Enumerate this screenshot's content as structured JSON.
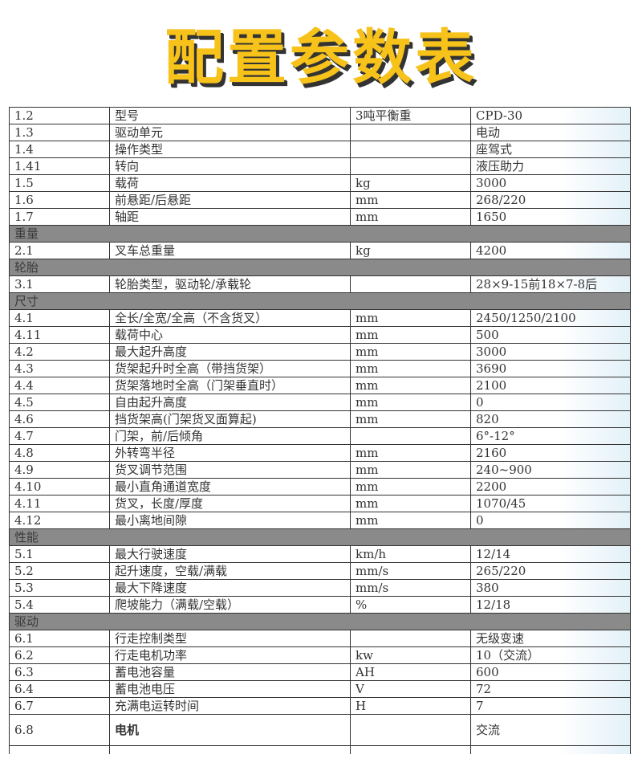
{
  "title": "配置参数表",
  "rows": [
    {
      "type": "row",
      "no": "1.2",
      "name": "型号",
      "unit": "3吨平衡重",
      "value": "CPD-30"
    },
    {
      "type": "row",
      "no": "1.3",
      "name": "驱动单元",
      "unit": "",
      "value": "电动"
    },
    {
      "type": "row",
      "no": "1.4",
      "name": "操作类型",
      "unit": "",
      "value": "座驾式"
    },
    {
      "type": "row",
      "no": "1.41",
      "name": "转向",
      "unit": "",
      "value": "液压助力"
    },
    {
      "type": "row",
      "no": "1.5",
      "name": "载荷",
      "unit": "kg",
      "value": "3000"
    },
    {
      "type": "row",
      "no": "1.6",
      "name": "前悬距/后悬距",
      "unit": "mm",
      "value": "268/220"
    },
    {
      "type": "row",
      "no": "1.7",
      "name": "轴距",
      "unit": "mm",
      "value": "1650"
    },
    {
      "type": "section",
      "name": "重量"
    },
    {
      "type": "row",
      "no": "2.1",
      "name": "叉车总重量",
      "unit": "kg",
      "value": "4200"
    },
    {
      "type": "section",
      "name": "轮胎"
    },
    {
      "type": "row",
      "no": "3.1",
      "name": "轮胎类型，驱动轮/承载轮",
      "unit": "",
      "value": "28×9-15前18×7-8后"
    },
    {
      "type": "section",
      "name": "尺寸"
    },
    {
      "type": "row",
      "no": "4.1",
      "name": "全长/全宽/全高（不含货叉）",
      "unit": "mm",
      "value": "2450/1250/2100"
    },
    {
      "type": "row",
      "no": "4.11",
      "name": "载荷中心",
      "unit": "mm",
      "value": "500"
    },
    {
      "type": "row",
      "no": "4.2",
      "name": "最大起升高度",
      "unit": "mm",
      "value": "3000"
    },
    {
      "type": "row",
      "no": "4.3",
      "name": "货架起升时全高（带挡货架）",
      "unit": "mm",
      "value": "3690"
    },
    {
      "type": "row",
      "no": "4.4",
      "name": "货架落地时全高（门架垂直时）",
      "unit": "mm",
      "value": "2100"
    },
    {
      "type": "row",
      "no": "4.5",
      "name": "自由起升高度",
      "unit": "mm",
      "value": "0"
    },
    {
      "type": "row",
      "no": "4.6",
      "name": "挡货架高(门架货叉面算起)",
      "unit": "mm",
      "value": "820"
    },
    {
      "type": "row",
      "no": "4.7",
      "name": "门架，前/后倾角",
      "unit": "",
      "value": "6°-12°"
    },
    {
      "type": "row",
      "no": "4.8",
      "name": "外转弯半径",
      "unit": "mm",
      "value": "2160"
    },
    {
      "type": "row",
      "no": "4.9",
      "name": "货叉调节范围",
      "unit": "mm",
      "value": "240~900"
    },
    {
      "type": "row",
      "no": "4.10",
      "name": "最小直角通道宽度",
      "unit": "mm",
      "value": "2200"
    },
    {
      "type": "row",
      "no": "4.11",
      "name": "货叉，长度/厚度",
      "unit": "mm",
      "value": "1070/45"
    },
    {
      "type": "row",
      "no": "4.12",
      "name": "最小离地间隙",
      "unit": "mm",
      "value": "0"
    },
    {
      "type": "section",
      "name": "性能"
    },
    {
      "type": "row",
      "no": "5.1",
      "name": "最大行驶速度",
      "unit": "km/h",
      "value": "12/14"
    },
    {
      "type": "row",
      "no": "5.2",
      "name": "起升速度，空载/满载",
      "unit": "mm/s",
      "value": "265/220"
    },
    {
      "type": "row",
      "no": "5.3",
      "name": "最大下降速度",
      "unit": "mm/s",
      "value": "380"
    },
    {
      "type": "row",
      "no": "5.4",
      "name": "爬坡能力（满载/空载）",
      "unit": "%",
      "value": "12/18"
    },
    {
      "type": "section",
      "name": "驱动"
    },
    {
      "type": "row",
      "no": "6.1",
      "name": "行走控制类型",
      "unit": "",
      "value": "无级变速"
    },
    {
      "type": "row",
      "no": "6.2",
      "name": "行走电机功率",
      "unit": "kw",
      "value": "10（交流）"
    },
    {
      "type": "row",
      "no": "6.3",
      "name": "蓄电池容量",
      "unit": "AH",
      "value": "600"
    },
    {
      "type": "row",
      "no": "6.4",
      "name": "蓄电池电压",
      "unit": "V",
      "value": "72"
    },
    {
      "type": "row",
      "no": "6.7",
      "name": "充满电运转时间",
      "unit": "H",
      "value": "7"
    },
    {
      "type": "tall",
      "no": "6.8",
      "name": "电机",
      "unit": "",
      "value": "交流"
    }
  ]
}
